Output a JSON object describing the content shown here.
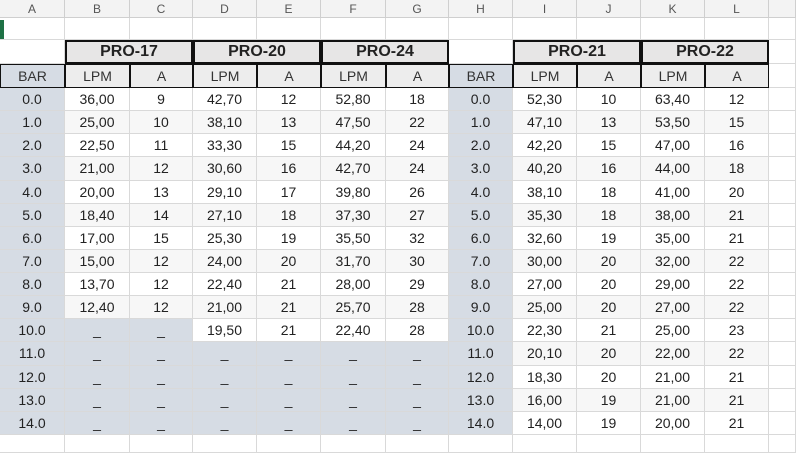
{
  "sheet": {
    "column_headers": [
      "A",
      "B",
      "C",
      "D",
      "E",
      "F",
      "G",
      "H",
      "I",
      "J",
      "K",
      "L"
    ],
    "groups": [
      "PRO-17",
      "PRO-20",
      "PRO-24",
      "PRO-21",
      "PRO-22"
    ],
    "subheaders": [
      "BAR",
      "LPM",
      "A",
      "LPM",
      "A",
      "LPM",
      "A",
      "BAR",
      "LPM",
      "A",
      "LPM",
      "A"
    ],
    "rows": [
      [
        "0.0",
        "36,00",
        "9",
        "42,70",
        "12",
        "52,80",
        "18",
        "0.0",
        "52,30",
        "10",
        "63,40",
        "12"
      ],
      [
        "1.0",
        "25,00",
        "10",
        "38,10",
        "13",
        "47,50",
        "22",
        "1.0",
        "47,10",
        "13",
        "53,50",
        "15"
      ],
      [
        "2.0",
        "22,50",
        "11",
        "33,30",
        "15",
        "44,20",
        "24",
        "2.0",
        "42,20",
        "15",
        "47,00",
        "16"
      ],
      [
        "3.0",
        "21,00",
        "12",
        "30,60",
        "16",
        "42,70",
        "24",
        "3.0",
        "40,20",
        "16",
        "44,00",
        "18"
      ],
      [
        "4.0",
        "20,00",
        "13",
        "29,10",
        "17",
        "39,80",
        "26",
        "4.0",
        "38,10",
        "18",
        "41,00",
        "20"
      ],
      [
        "5.0",
        "18,40",
        "14",
        "27,10",
        "18",
        "37,30",
        "27",
        "5.0",
        "35,30",
        "18",
        "38,00",
        "21"
      ],
      [
        "6.0",
        "17,00",
        "15",
        "25,30",
        "19",
        "35,50",
        "32",
        "6.0",
        "32,60",
        "19",
        "35,00",
        "21"
      ],
      [
        "7.0",
        "15,00",
        "12",
        "24,00",
        "20",
        "31,70",
        "30",
        "7.0",
        "30,00",
        "20",
        "32,00",
        "22"
      ],
      [
        "8.0",
        "13,70",
        "12",
        "22,40",
        "21",
        "28,00",
        "29",
        "8.0",
        "27,00",
        "20",
        "29,00",
        "22"
      ],
      [
        "9.0",
        "12,40",
        "12",
        "21,00",
        "21",
        "25,70",
        "28",
        "9.0",
        "25,00",
        "20",
        "27,00",
        "22"
      ],
      [
        "10.0",
        "_",
        "_",
        "19,50",
        "21",
        "22,40",
        "28",
        "10.0",
        "22,30",
        "21",
        "25,00",
        "23"
      ],
      [
        "11.0",
        "_",
        "_",
        "_",
        "_",
        "_",
        "_",
        "11.0",
        "20,10",
        "20",
        "22,00",
        "22"
      ],
      [
        "12.0",
        "_",
        "_",
        "_",
        "_",
        "_",
        "_",
        "12.0",
        "18,30",
        "20",
        "21,00",
        "21"
      ],
      [
        "13.0",
        "_",
        "_",
        "_",
        "_",
        "_",
        "_",
        "13.0",
        "16,00",
        "19",
        "21,00",
        "21"
      ],
      [
        "14.0",
        "_",
        "_",
        "_",
        "_",
        "_",
        "_",
        "14.0",
        "14,00",
        "19",
        "20,00",
        "21"
      ]
    ]
  }
}
